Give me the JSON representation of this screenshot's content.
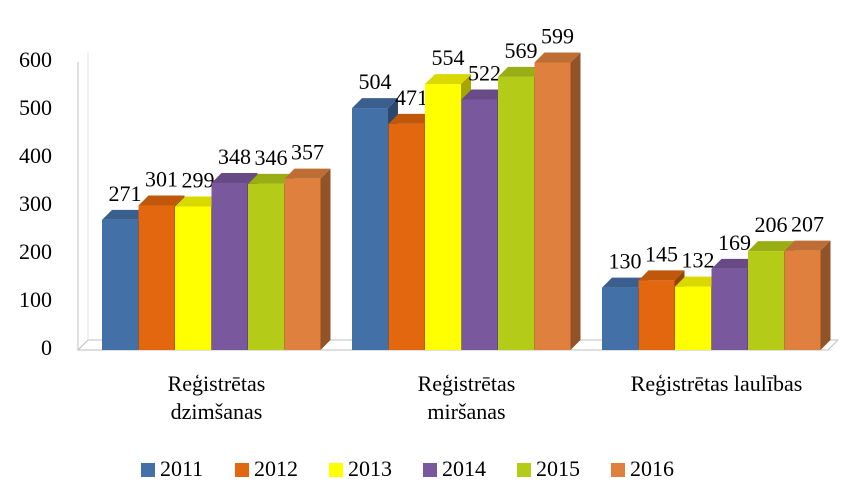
{
  "chart_data": {
    "type": "bar3d",
    "categories": [
      "Reģistrētas dzimšanas",
      "Reģistrētas miršanas",
      "Reģistrētas laulības"
    ],
    "series": [
      {
        "name": "2011",
        "color": "#4470a8",
        "values": [
          271,
          504,
          130
        ]
      },
      {
        "name": "2012",
        "color": "#e2670e",
        "values": [
          301,
          471,
          145
        ]
      },
      {
        "name": "2013",
        "color": "#ffff00",
        "values": [
          299,
          554,
          132
        ]
      },
      {
        "name": "2014",
        "color": "#7a589e",
        "values": [
          348,
          522,
          169
        ]
      },
      {
        "name": "2015",
        "color": "#b4cc18",
        "values": [
          346,
          569,
          206
        ]
      },
      {
        "name": "2016",
        "color": "#e0803e",
        "values": [
          357,
          599,
          207
        ]
      }
    ],
    "ylim": [
      0,
      600
    ],
    "yticks": [
      0,
      100,
      200,
      300,
      400,
      500,
      600
    ],
    "grid": false,
    "legend": "bottom"
  }
}
